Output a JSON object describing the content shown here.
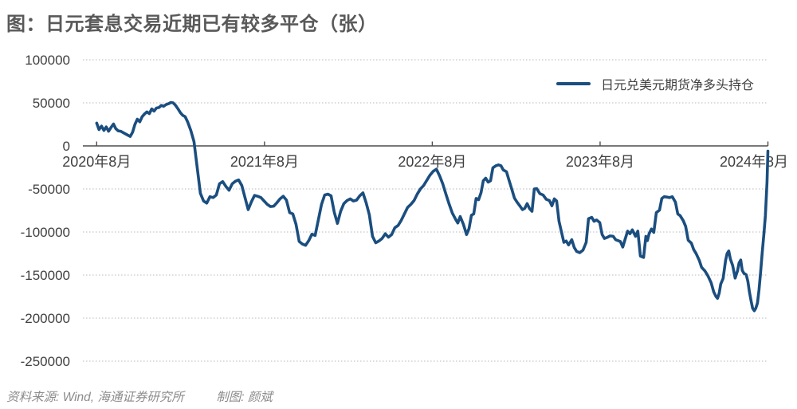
{
  "page": {
    "title": "图：日元套息交易近期已有较多平仓（张）"
  },
  "footer": {
    "source": "资料来源: Wind, 海通证券研究所",
    "credit": "制图: 颜斌"
  },
  "colors": {
    "series_line": "#1b4e7f",
    "title_text": "#595959",
    "axis_text": "#404040",
    "axis_line": "#4d4d4d",
    "gridline": "#b8b8b8",
    "footer_text": "#8c8c8c",
    "background": "#ffffff"
  },
  "chart_data": {
    "type": "line",
    "title": "图：日元套息交易近期已有较多平仓（张）",
    "unit": "张",
    "grid": "horizontal-dotted",
    "legend_position": "top-right",
    "x_axis": {
      "range": [
        2020.583,
        2024.583
      ],
      "ticks": [
        {
          "year": 2020.583,
          "label": "2020年8月"
        },
        {
          "year": 2021.583,
          "label": "2021年8月"
        },
        {
          "year": 2022.583,
          "label": "2022年8月"
        },
        {
          "year": 2023.583,
          "label": "2023年8月"
        },
        {
          "year": 2024.583,
          "label": "2024年8月"
        }
      ]
    },
    "y_axis": {
      "range": [
        -250000,
        100000
      ],
      "ticks": [
        100000,
        50000,
        0,
        -50000,
        -100000,
        -150000,
        -200000,
        -250000
      ]
    },
    "series": [
      {
        "name": "日元兑美元期货净多头持仓",
        "color": "#1b4e7f",
        "x_unit": "decimal_year",
        "points": [
          [
            2020.583,
            26500
          ],
          [
            2020.597,
            19000
          ],
          [
            2020.612,
            23000
          ],
          [
            2020.626,
            18000
          ],
          [
            2020.64,
            22000
          ],
          [
            2020.654,
            17000
          ],
          [
            2020.669,
            21500
          ],
          [
            2020.683,
            25500
          ],
          [
            2020.697,
            20000
          ],
          [
            2020.711,
            17500
          ],
          [
            2020.726,
            17000
          ],
          [
            2020.745,
            15000
          ],
          [
            2020.768,
            12500
          ],
          [
            2020.783,
            11000
          ],
          [
            2020.797,
            16000
          ],
          [
            2020.811,
            25000
          ],
          [
            2020.825,
            31000
          ],
          [
            2020.84,
            28000
          ],
          [
            2020.854,
            34000
          ],
          [
            2020.868,
            37000
          ],
          [
            2020.882,
            39500
          ],
          [
            2020.897,
            37500
          ],
          [
            2020.911,
            43000
          ],
          [
            2020.925,
            40500
          ],
          [
            2020.939,
            44000
          ],
          [
            2020.954,
            44500
          ],
          [
            2020.968,
            47000
          ],
          [
            2020.982,
            46000
          ],
          [
            2020.996,
            48000
          ],
          [
            2021.011,
            49000
          ],
          [
            2021.025,
            50500
          ],
          [
            2021.039,
            50000
          ],
          [
            2021.053,
            47000
          ],
          [
            2021.068,
            43000
          ],
          [
            2021.082,
            38500
          ],
          [
            2021.096,
            35500
          ],
          [
            2021.11,
            34000
          ],
          [
            2021.125,
            28000
          ],
          [
            2021.144,
            18000
          ],
          [
            2021.163,
            5000
          ],
          [
            2021.182,
            -25000
          ],
          [
            2021.201,
            -55000
          ],
          [
            2021.22,
            -64000
          ],
          [
            2021.239,
            -66500
          ],
          [
            2021.258,
            -59000
          ],
          [
            2021.277,
            -60000
          ],
          [
            2021.296,
            -57000
          ],
          [
            2021.315,
            -44000
          ],
          [
            2021.334,
            -41500
          ],
          [
            2021.353,
            -47000
          ],
          [
            2021.372,
            -51500
          ],
          [
            2021.391,
            -44000
          ],
          [
            2021.41,
            -41000
          ],
          [
            2021.429,
            -39500
          ],
          [
            2021.448,
            -46000
          ],
          [
            2021.467,
            -60000
          ],
          [
            2021.486,
            -74000
          ],
          [
            2021.505,
            -65000
          ],
          [
            2021.524,
            -57500
          ],
          [
            2021.543,
            -58500
          ],
          [
            2021.562,
            -60000
          ],
          [
            2021.581,
            -64000
          ],
          [
            2021.6,
            -68000
          ],
          [
            2021.619,
            -70500
          ],
          [
            2021.638,
            -70000
          ],
          [
            2021.657,
            -66000
          ],
          [
            2021.676,
            -61500
          ],
          [
            2021.695,
            -58500
          ],
          [
            2021.714,
            -63000
          ],
          [
            2021.733,
            -77500
          ],
          [
            2021.752,
            -79000
          ],
          [
            2021.771,
            -91000
          ],
          [
            2021.79,
            -111000
          ],
          [
            2021.809,
            -114000
          ],
          [
            2021.828,
            -115500
          ],
          [
            2021.847,
            -110000
          ],
          [
            2021.866,
            -102500
          ],
          [
            2021.885,
            -104000
          ],
          [
            2021.904,
            -86000
          ],
          [
            2021.923,
            -68000
          ],
          [
            2021.942,
            -57000
          ],
          [
            2021.961,
            -56000
          ],
          [
            2021.98,
            -58000
          ],
          [
            2021.999,
            -77000
          ],
          [
            2022.018,
            -90000
          ],
          [
            2022.037,
            -76000
          ],
          [
            2022.056,
            -67000
          ],
          [
            2022.075,
            -63500
          ],
          [
            2022.094,
            -61500
          ],
          [
            2022.113,
            -64000
          ],
          [
            2022.132,
            -63000
          ],
          [
            2022.151,
            -58000
          ],
          [
            2022.17,
            -54500
          ],
          [
            2022.189,
            -66000
          ],
          [
            2022.208,
            -80000
          ],
          [
            2022.227,
            -105000
          ],
          [
            2022.246,
            -112500
          ],
          [
            2022.265,
            -110500
          ],
          [
            2022.284,
            -107500
          ],
          [
            2022.303,
            -102000
          ],
          [
            2022.322,
            -106000
          ],
          [
            2022.341,
            -103000
          ],
          [
            2022.36,
            -95000
          ],
          [
            2022.379,
            -92500
          ],
          [
            2022.398,
            -86500
          ],
          [
            2022.417,
            -79000
          ],
          [
            2022.436,
            -71500
          ],
          [
            2022.455,
            -68000
          ],
          [
            2022.474,
            -63500
          ],
          [
            2022.493,
            -56000
          ],
          [
            2022.512,
            -50000
          ],
          [
            2022.531,
            -46000
          ],
          [
            2022.55,
            -40000
          ],
          [
            2022.569,
            -34000
          ],
          [
            2022.588,
            -29500
          ],
          [
            2022.607,
            -27000
          ],
          [
            2022.626,
            -34500
          ],
          [
            2022.645,
            -44000
          ],
          [
            2022.664,
            -56000
          ],
          [
            2022.683,
            -67500
          ],
          [
            2022.702,
            -78000
          ],
          [
            2022.721,
            -85000
          ],
          [
            2022.735,
            -89500
          ],
          [
            2022.749,
            -82000
          ],
          [
            2022.768,
            -91000
          ],
          [
            2022.787,
            -103000
          ],
          [
            2022.802,
            -96000
          ],
          [
            2022.816,
            -80500
          ],
          [
            2022.83,
            -79000
          ],
          [
            2022.844,
            -61000
          ],
          [
            2022.859,
            -62500
          ],
          [
            2022.873,
            -54500
          ],
          [
            2022.887,
            -40500
          ],
          [
            2022.901,
            -37500
          ],
          [
            2022.916,
            -42000
          ],
          [
            2022.93,
            -40500
          ],
          [
            2022.944,
            -25500
          ],
          [
            2022.963,
            -23000
          ],
          [
            2022.977,
            -22000
          ],
          [
            2022.992,
            -23000
          ],
          [
            2023.006,
            -28000
          ],
          [
            2023.025,
            -30000
          ],
          [
            2023.039,
            -39000
          ],
          [
            2023.058,
            -51000
          ],
          [
            2023.072,
            -60500
          ],
          [
            2023.087,
            -65000
          ],
          [
            2023.106,
            -70000
          ],
          [
            2023.12,
            -74000
          ],
          [
            2023.134,
            -72500
          ],
          [
            2023.148,
            -67000
          ],
          [
            2023.163,
            -73000
          ],
          [
            2023.177,
            -76000
          ],
          [
            2023.191,
            -50000
          ],
          [
            2023.205,
            -49500
          ],
          [
            2023.224,
            -55500
          ],
          [
            2023.243,
            -57000
          ],
          [
            2023.262,
            -62000
          ],
          [
            2023.281,
            -63500
          ],
          [
            2023.296,
            -69500
          ],
          [
            2023.31,
            -61500
          ],
          [
            2023.324,
            -64000
          ],
          [
            2023.338,
            -87500
          ],
          [
            2023.353,
            -100000
          ],
          [
            2023.367,
            -112000
          ],
          [
            2023.381,
            -110500
          ],
          [
            2023.395,
            -115000
          ],
          [
            2023.414,
            -109000
          ],
          [
            2023.429,
            -118000
          ],
          [
            2023.443,
            -122500
          ],
          [
            2023.462,
            -124000
          ],
          [
            2023.481,
            -121000
          ],
          [
            2023.5,
            -112000
          ],
          [
            2023.514,
            -84500
          ],
          [
            2023.533,
            -83000
          ],
          [
            2023.547,
            -87500
          ],
          [
            2023.562,
            -86000
          ],
          [
            2023.581,
            -89000
          ],
          [
            2023.595,
            -103000
          ],
          [
            2023.609,
            -107500
          ],
          [
            2023.628,
            -106000
          ],
          [
            2023.642,
            -104500
          ],
          [
            2023.661,
            -105000
          ],
          [
            2023.676,
            -109000
          ],
          [
            2023.69,
            -110000
          ],
          [
            2023.704,
            -111000
          ],
          [
            2023.718,
            -117500
          ],
          [
            2023.732,
            -108500
          ],
          [
            2023.747,
            -99000
          ],
          [
            2023.761,
            -102000
          ],
          [
            2023.775,
            -97500
          ],
          [
            2023.794,
            -105000
          ],
          [
            2023.808,
            -99000
          ],
          [
            2023.823,
            -128000
          ],
          [
            2023.842,
            -129500
          ],
          [
            2023.856,
            -105000
          ],
          [
            2023.865,
            -110000
          ],
          [
            2023.875,
            -102000
          ],
          [
            2023.889,
            -96500
          ],
          [
            2023.903,
            -100500
          ],
          [
            2023.918,
            -77500
          ],
          [
            2023.937,
            -74500
          ],
          [
            2023.951,
            -61000
          ],
          [
            2023.965,
            -59000
          ],
          [
            2023.984,
            -59500
          ],
          [
            2023.998,
            -60000
          ],
          [
            2024.013,
            -59000
          ],
          [
            2024.032,
            -65500
          ],
          [
            2024.046,
            -79000
          ],
          [
            2024.06,
            -81000
          ],
          [
            2024.079,
            -87000
          ],
          [
            2024.093,
            -93500
          ],
          [
            2024.108,
            -109500
          ],
          [
            2024.127,
            -113000
          ],
          [
            2024.141,
            -120500
          ],
          [
            2024.155,
            -125000
          ],
          [
            2024.174,
            -133000
          ],
          [
            2024.188,
            -141000
          ],
          [
            2024.207,
            -145000
          ],
          [
            2024.226,
            -151000
          ],
          [
            2024.245,
            -159000
          ],
          [
            2024.26,
            -169500
          ],
          [
            2024.274,
            -175000
          ],
          [
            2024.283,
            -177000
          ],
          [
            2024.293,
            -171000
          ],
          [
            2024.302,
            -160500
          ],
          [
            2024.316,
            -154000
          ],
          [
            2024.331,
            -133000
          ],
          [
            2024.34,
            -125000
          ],
          [
            2024.35,
            -122000
          ],
          [
            2024.359,
            -131000
          ],
          [
            2024.373,
            -139000
          ],
          [
            2024.388,
            -153500
          ],
          [
            2024.402,
            -145000
          ],
          [
            2024.411,
            -136000
          ],
          [
            2024.421,
            -132500
          ],
          [
            2024.43,
            -144500
          ],
          [
            2024.44,
            -148000
          ],
          [
            2024.454,
            -149500
          ],
          [
            2024.464,
            -157500
          ],
          [
            2024.473,
            -169500
          ],
          [
            2024.483,
            -180000
          ],
          [
            2024.492,
            -188500
          ],
          [
            2024.502,
            -191500
          ],
          [
            2024.511,
            -188500
          ],
          [
            2024.521,
            -182500
          ],
          [
            2024.53,
            -167500
          ],
          [
            2024.54,
            -146000
          ],
          [
            2024.549,
            -124500
          ],
          [
            2024.559,
            -103000
          ],
          [
            2024.568,
            -81500
          ],
          [
            2024.578,
            -42000
          ],
          [
            2024.583,
            -6000
          ]
        ]
      }
    ]
  }
}
